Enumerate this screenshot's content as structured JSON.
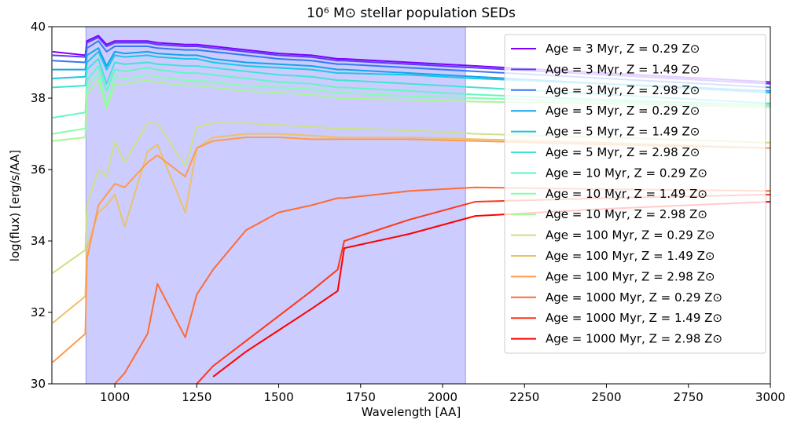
{
  "chart_data": {
    "type": "line",
    "title": "10⁶ M⊙ stellar population SEDs",
    "xlabel": "Wavelength [AA]",
    "ylabel": "log(flux) [erg/s/AA]",
    "x": [
      810,
      910,
      915,
      950,
      975,
      1000,
      1030,
      1100,
      1130,
      1215,
      1250,
      1300,
      1400,
      1500,
      1600,
      1680,
      1700,
      1900,
      2100,
      2500,
      3000
    ],
    "xlim": [
      808,
      3000
    ],
    "xticks": [
      1000,
      1250,
      1500,
      1750,
      2000,
      2250,
      2500,
      2750,
      3000
    ],
    "ylim": [
      30,
      40
    ],
    "yticks": [
      30,
      32,
      34,
      36,
      38,
      40
    ],
    "shaded_region": [
      912,
      2070
    ],
    "shaded_color": "#ccccff",
    "legend": "upper right",
    "series": [
      {
        "name": "Age = 3 Myr, Z = 0.29 Z⊙",
        "color": "#8000ff",
        "values": [
          39.3,
          39.2,
          39.6,
          39.75,
          39.5,
          39.6,
          39.6,
          39.6,
          39.55,
          39.5,
          39.5,
          39.45,
          39.35,
          39.25,
          39.2,
          39.1,
          39.1,
          39.0,
          38.9,
          38.7,
          38.45
        ]
      },
      {
        "name": "Age = 3 Myr, Z = 1.49 Z⊙",
        "color": "#5b3cfc",
        "values": [
          39.2,
          39.15,
          39.55,
          39.7,
          39.45,
          39.55,
          39.55,
          39.55,
          39.5,
          39.45,
          39.45,
          39.4,
          39.3,
          39.2,
          39.15,
          39.05,
          39.05,
          38.95,
          38.85,
          38.65,
          38.4
        ]
      },
      {
        "name": "Age = 3 Myr, Z = 2.98 Z⊙",
        "color": "#3876f6",
        "values": [
          39.05,
          39.0,
          39.4,
          39.6,
          39.3,
          39.45,
          39.45,
          39.45,
          39.4,
          39.35,
          39.35,
          39.3,
          39.2,
          39.1,
          39.05,
          38.95,
          38.95,
          38.85,
          38.75,
          38.55,
          38.3
        ]
      },
      {
        "name": "Age = 5 Myr, Z = 0.29 Z⊙",
        "color": "#12a3ee",
        "values": [
          38.8,
          38.8,
          39.2,
          39.4,
          38.9,
          39.3,
          39.25,
          39.3,
          39.25,
          39.2,
          39.2,
          39.1,
          39.0,
          38.95,
          38.9,
          38.8,
          38.8,
          38.7,
          38.6,
          38.4,
          38.2
        ]
      },
      {
        "name": "Age = 5 Myr, Z = 1.49 Z⊙",
        "color": "#1ac7e4",
        "values": [
          38.55,
          38.6,
          39.0,
          39.3,
          38.8,
          39.2,
          39.15,
          39.2,
          39.15,
          39.1,
          39.1,
          39.0,
          38.9,
          38.85,
          38.8,
          38.7,
          38.7,
          38.65,
          38.55,
          38.4,
          38.15
        ]
      },
      {
        "name": "Age = 5 Myr, Z = 2.98 Z⊙",
        "color": "#3fe4d5",
        "values": [
          38.3,
          38.35,
          38.8,
          39.1,
          38.4,
          39.0,
          38.95,
          39.0,
          38.95,
          38.9,
          38.9,
          38.85,
          38.75,
          38.65,
          38.6,
          38.5,
          38.5,
          38.4,
          38.3,
          38.1,
          37.85
        ]
      },
      {
        "name": "Age = 10 Myr, Z = 0.29 Z⊙",
        "color": "#62f7c2",
        "values": [
          37.45,
          37.6,
          38.5,
          38.9,
          38.2,
          38.8,
          38.75,
          38.85,
          38.8,
          38.7,
          38.7,
          38.65,
          38.55,
          38.45,
          38.4,
          38.3,
          38.3,
          38.2,
          38.1,
          37.95,
          37.8
        ]
      },
      {
        "name": "Age = 10 Myr, Z = 1.49 Z⊙",
        "color": "#86fdae",
        "values": [
          37.0,
          37.15,
          38.3,
          38.7,
          37.8,
          38.6,
          38.55,
          38.65,
          38.6,
          38.5,
          38.5,
          38.45,
          38.35,
          38.3,
          38.25,
          38.15,
          38.15,
          38.05,
          38.0,
          37.9,
          37.8
        ]
      },
      {
        "name": "Age = 10 Myr, Z = 2.98 Z⊙",
        "color": "#aaf599",
        "values": [
          36.8,
          36.9,
          38.1,
          38.5,
          37.7,
          38.4,
          38.4,
          38.5,
          38.45,
          38.35,
          38.35,
          38.3,
          38.2,
          38.15,
          38.1,
          38.0,
          38.0,
          37.95,
          37.9,
          37.85,
          37.75
        ]
      },
      {
        "name": "Age = 100 Myr, Z = 0.29 Z⊙",
        "color": "#cce182",
        "values": [
          33.1,
          33.75,
          35.0,
          36.0,
          35.8,
          36.8,
          36.2,
          37.3,
          37.3,
          36.1,
          37.2,
          37.3,
          37.3,
          37.25,
          37.2,
          37.15,
          37.15,
          37.1,
          37.0,
          36.9,
          36.75
        ]
      },
      {
        "name": "Age = 100 Myr, Z = 1.49 Z⊙",
        "color": "#ecc16a",
        "values": [
          31.7,
          32.45,
          33.8,
          34.8,
          35.0,
          35.3,
          34.4,
          36.5,
          36.7,
          34.8,
          36.6,
          36.9,
          37.0,
          37.0,
          36.95,
          36.9,
          36.9,
          36.9,
          36.85,
          36.75,
          36.6
        ]
      },
      {
        "name": "Age = 100 Myr, Z = 2.98 Z⊙",
        "color": "#ff9a4e",
        "values": [
          30.6,
          31.4,
          33.5,
          35.0,
          35.3,
          35.6,
          35.5,
          36.2,
          36.4,
          35.8,
          36.6,
          36.8,
          36.9,
          36.9,
          36.85,
          36.85,
          36.85,
          36.85,
          36.8,
          36.7,
          36.6
        ]
      },
      {
        "name": "Age = 1000 Myr, Z = 0.29 Z⊙",
        "color": "#ff6b33",
        "values": [
          null,
          null,
          null,
          null,
          null,
          30.0,
          30.3,
          31.4,
          32.8,
          31.3,
          32.5,
          33.2,
          34.3,
          34.8,
          35.0,
          35.2,
          35.2,
          35.4,
          35.5,
          35.45,
          35.4
        ]
      },
      {
        "name": "Age = 1000 Myr, Z = 1.49 Z⊙",
        "color": "#ff3719",
        "values": [
          null,
          null,
          null,
          null,
          null,
          null,
          null,
          null,
          null,
          null,
          30.0,
          30.5,
          31.2,
          31.9,
          32.6,
          33.2,
          34.0,
          34.6,
          35.1,
          35.2,
          35.3
        ]
      },
      {
        "name": "Age = 1000 Myr, Z = 2.98 Z⊙",
        "color": "#ff0000",
        "values": [
          null,
          null,
          null,
          null,
          null,
          null,
          null,
          null,
          null,
          null,
          null,
          30.2,
          30.9,
          31.5,
          32.1,
          32.6,
          33.8,
          34.2,
          34.7,
          34.9,
          35.1
        ]
      }
    ]
  }
}
